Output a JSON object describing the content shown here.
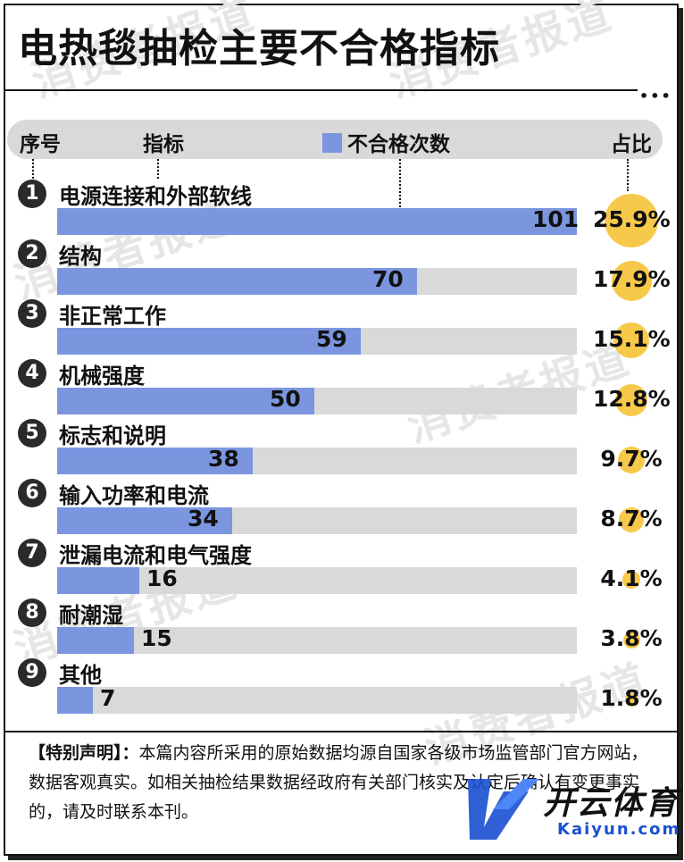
{
  "title": "电热毯抽检主要不合格指标",
  "dots": "•••",
  "header": {
    "seq": "序号",
    "indicator": "指标",
    "legend": "不合格次数",
    "share": "占比"
  },
  "chart_data": {
    "type": "bar",
    "orientation": "horizontal",
    "series": [
      {
        "name": "不合格次数",
        "values": [
          101,
          70,
          59,
          50,
          38,
          34,
          16,
          15,
          7
        ]
      }
    ],
    "categories": [
      "电源连接和外部软线",
      "结构",
      "非正常工作",
      "机械强度",
      "标志和说明",
      "输入功率和电流",
      "泄漏电流和电气强度",
      "耐潮湿",
      "其他"
    ],
    "ranks": [
      "1",
      "2",
      "3",
      "4",
      "5",
      "6",
      "7",
      "8",
      "9"
    ],
    "shares": [
      "25.9%",
      "17.9%",
      "15.1%",
      "12.8%",
      "9.7%",
      "8.7%",
      "4.1%",
      "3.8%",
      "1.8%"
    ],
    "share_values": [
      25.9,
      17.9,
      15.1,
      12.8,
      9.7,
      8.7,
      4.1,
      3.8,
      1.8
    ],
    "xlim": [
      0,
      101
    ],
    "bar_color": "#7b96df",
    "track_color": "#d9d9d9",
    "share_color": "#f7c94a"
  },
  "footer": {
    "lead": "【特别声明】：",
    "text": "本篇内容所采用的原始数据均源自国家各级市场监管部门官方网站，数据客观真实。如相关抽检结果数据经政府有关部门核实及认定后确认有变更事实的，请及时联系本刊。"
  },
  "watermark": "消费者报道",
  "logo": {
    "text": "开云体育",
    "sub": "Kaiyun.com"
  }
}
